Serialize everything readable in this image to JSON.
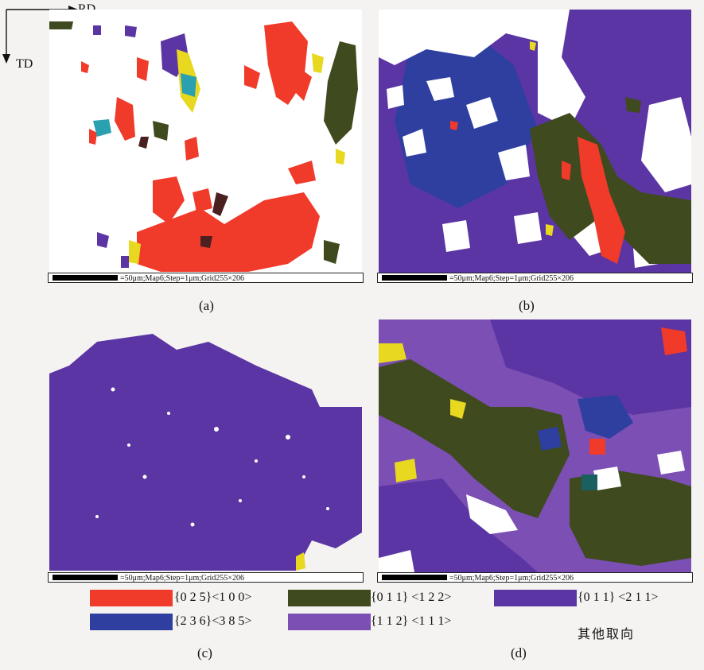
{
  "axes": {
    "rd": "RD",
    "td": "TD"
  },
  "panels": [
    {
      "caption": "(a)",
      "scalebar": "=50μm;Map6;Step=1μm;Grid255×206"
    },
    {
      "caption": "(b)",
      "scalebar": "=50μm;Map6;Step=1μm;Grid255×206"
    },
    {
      "caption": "(c)",
      "scalebar": "=50μm;Map6;Step=1μm;Grid255×206"
    },
    {
      "caption": "(d)",
      "scalebar": "=50μm;Map6;Step=1μm;Grid255×206"
    }
  ],
  "legend": [
    {
      "label": "{0 2 5}<1 0 0>",
      "color": "#f03a2a"
    },
    {
      "label": "{0 1 1} <1 2 2>",
      "color": "#3f4a1f"
    },
    {
      "label": "{0 1 1} <2 1 1>",
      "color": "#5b35a3"
    },
    {
      "label": "{2 3 6}<3 8 5>",
      "color": "#2e3fa0"
    },
    {
      "label": "{1 1 2} <1 1 1>",
      "color": "#7b4fb3"
    }
  ],
  "other_label": "其他取向",
  "colors": {
    "red": "#f03a2a",
    "green": "#3f4a1f",
    "indigo": "#5b35a3",
    "blue": "#2e3fa0",
    "violet": "#7b4fb3",
    "yellow": "#e8d820"
  }
}
